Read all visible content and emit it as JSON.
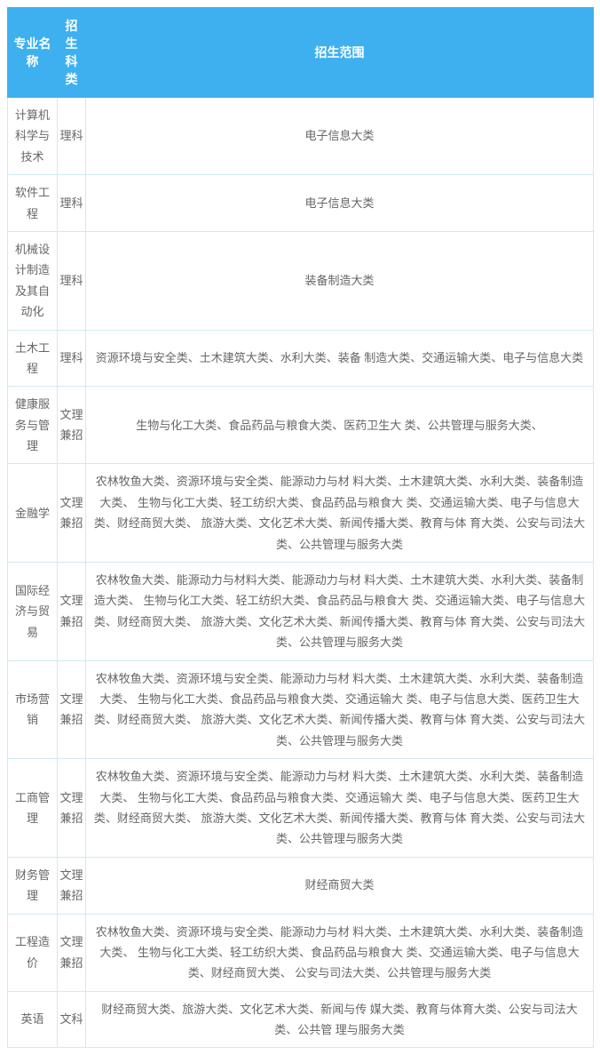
{
  "style": {
    "header_bg": "#3eb0ef",
    "header_color": "#ffffff",
    "border_color": "#d0e8f5",
    "body_color": "#666666",
    "header_fontsize": "14px",
    "body_fontsize": "13px"
  },
  "columns": [
    "专业名称",
    "招生科类",
    "招生范围"
  ],
  "rows": [
    {
      "major": "计算机科学与技术",
      "category": "理科",
      "scope": "电子信息大类"
    },
    {
      "major": "软件工程",
      "category": "理科",
      "scope": "电子信息大类"
    },
    {
      "major": "机械设计制造及其自动化",
      "category": "理科",
      "scope": "装备制造大类"
    },
    {
      "major": "土木工程",
      "category": "理科",
      "scope": "资源环境与安全类、土木建筑大类、水利大类、装备 制造大类、交通运输大类、电子与信息大类"
    },
    {
      "major": "健康服务与管理",
      "category": "文理兼招",
      "scope": "生物与化工大类、食品药品与粮食大类、医药卫生大 类、公共管理与服务大类、"
    },
    {
      "major": "金融学",
      "category": "文理兼招",
      "scope": "农林牧鱼大类、资源环境与安全类、能源动力与材 料大类、土木建筑大类、水利大类、装备制造大类、 生物与化工大类、轻工纺织大类、食品药品与粮食大 类、交通运输大类、电子与信息大类、财经商贸大类、 旅游大类、文化艺术大类、新闻传播大类、教育与体 育大类、公安与司法大类、公共管理与服务大类"
    },
    {
      "major": "国际经济与贸易",
      "category": "文理兼招",
      "scope": "农林牧鱼大类、能源动力与材料大类、能源动力与材 料大类、土木建筑大类、水利大类、装备制造大类、 生物与化工大类、轻工纺织大类、食品药品与粮食大 类、交通运输大类、电子与信息大类、财经商贸大类、 旅游大类、文化艺术大类、新闻传播大类、教育与体 育大类、公安与司法大类、公共管理与服务大类"
    },
    {
      "major": "市场营销",
      "category": "文理兼招",
      "scope": "农林牧鱼大类、资源环境与安全类、能源动力与材 料大类、土木建筑大类、水利大类、装备制造大类、 生物与化工大类、食品药品与粮食大类、交通运输大 类、电子与信息大类、医药卫生大类、财经商贸大类、 旅游大类、文化艺术大类、新闻传播大类、教育与体 育大类、公安与司法大类、公共管理与服务大类"
    },
    {
      "major": "工商管理",
      "category": "文理兼招",
      "scope": "农林牧鱼大类、资源环境与安全类、能源动力与材 料大类、土木建筑大类、水利大类、装备制造大类、 生物与化工大类、食品药品与粮食大类、交通运输大 类、电子与信息大类、医药卫生大类、财经商贸大类、 旅游大类、文化艺术大类、新闻传播大类、教育与体 育大类、公安与司法大类、公共管理与服务大类"
    },
    {
      "major": "财务管理",
      "category": "文理兼招",
      "scope": "财经商贸大类"
    },
    {
      "major": "工程造价",
      "category": "文理兼招",
      "scope": "农林牧鱼大类、资源环境与安全类、能源动力与材 料大类、土木建筑大类、水利大类、装备制造大类、 生物与化工大类、轻工纺织大类、食品药品与粮食大 类、交通运输大类、电子与信息大类、财经商贸大类、 公安与司法大类、公共管理与服务大类"
    },
    {
      "major": "英语",
      "category": "文科",
      "scope": "财经商贸大类、旅游大类、文化艺术大类、新闻与传 媒大类、教育与体育大类、公安与司法大类、公共管 理与服务大类"
    }
  ]
}
